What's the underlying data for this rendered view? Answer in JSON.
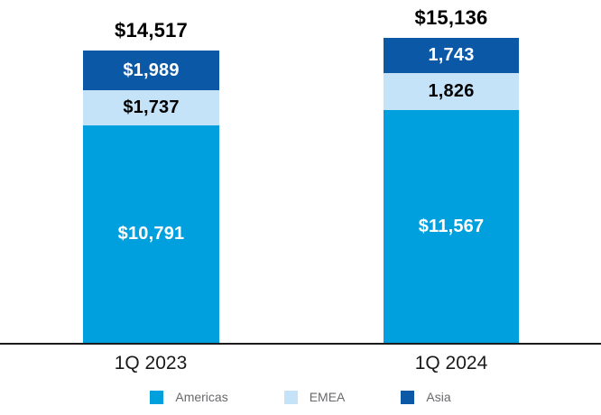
{
  "chart_data": {
    "type": "bar",
    "stacked": true,
    "categories": [
      "1Q 2023",
      "1Q 2024"
    ],
    "series": [
      {
        "name": "Americas",
        "color": "#00A0DF",
        "label_color": "#FFFFFF",
        "values": [
          10791,
          11567
        ],
        "seg_labels": [
          "$10,791",
          "$11,567"
        ]
      },
      {
        "name": "EMEA",
        "color": "#C5E3F8",
        "label_color": "#000000",
        "values": [
          1737,
          1826
        ],
        "seg_labels": [
          "$1,737",
          "1,826"
        ]
      },
      {
        "name": "Asia",
        "color": "#0B59A6",
        "label_color": "#FFFFFF",
        "values": [
          1989,
          1743
        ],
        "seg_labels": [
          "$1,989",
          "1,743"
        ]
      }
    ],
    "totals": [
      14517,
      15136
    ],
    "total_labels": [
      "$14,517",
      "$15,136"
    ],
    "legend_entries": [
      "Americas",
      "EMEA",
      "Asia"
    ],
    "legend_position": "bottom",
    "grid": false,
    "axis_color": "#1c1c1c",
    "ylim": [
      0,
      15136
    ]
  }
}
